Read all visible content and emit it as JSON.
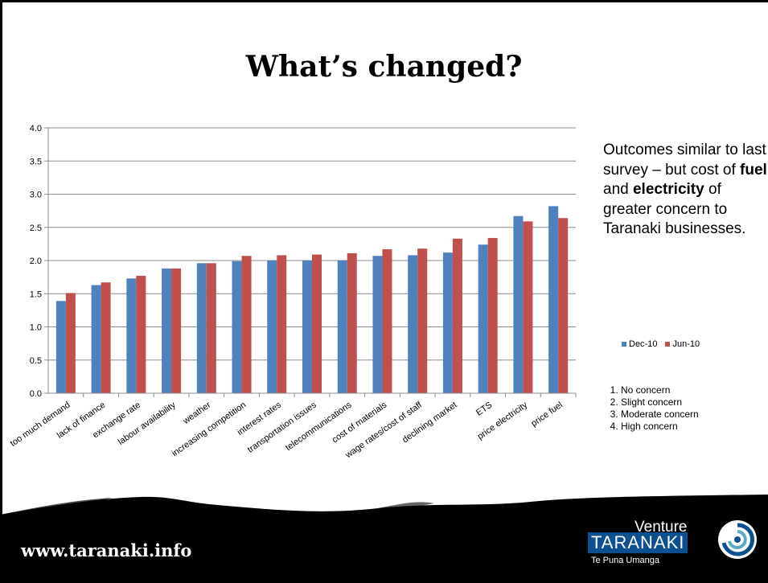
{
  "slide": {
    "title": "What’s changed?",
    "side_text_parts": [
      {
        "text": "Outcomes similar to last survey – but cost of ",
        "bold": false
      },
      {
        "text": "fuel",
        "bold": true
      },
      {
        "text": " and ",
        "bold": false
      },
      {
        "text": "electricity",
        "bold": true
      },
      {
        "text": " of greater concern to Taranaki businesses.",
        "bold": false
      }
    ],
    "scale_items": [
      "No concern",
      "Slight concern",
      "Moderate concern",
      "High concern"
    ],
    "footer_url": "www.taranaki.info",
    "logo": {
      "venture": "Venture",
      "taranaki": "TARANAKI",
      "subtitle": "Te Puna Umanga"
    }
  },
  "chart_data": {
    "type": "bar",
    "categories": [
      "too much demand",
      "lack of finance",
      "exchange rate",
      "labour availability",
      "weather",
      "increasing competition",
      "interest rates",
      "transportation issues",
      "telecommunications",
      "cost of materials",
      "wage rates/cost of staff",
      "declining market",
      "ETS",
      "price electricity",
      "price fuel"
    ],
    "series": [
      {
        "name": "Dec-10",
        "color": "#4f81bd",
        "values": [
          1.39,
          1.63,
          1.73,
          1.88,
          1.96,
          1.99,
          2.0,
          2.0,
          2.0,
          2.07,
          2.08,
          2.12,
          2.24,
          2.67,
          2.82
        ]
      },
      {
        "name": "Jun-10",
        "color": "#c0504d",
        "values": [
          1.51,
          1.67,
          1.77,
          1.88,
          1.96,
          2.07,
          2.08,
          2.09,
          2.11,
          2.17,
          2.18,
          2.33,
          2.34,
          2.59,
          2.64
        ]
      }
    ],
    "ylim": [
      0,
      4
    ],
    "yticks": [
      "0.0",
      "0.5",
      "1.0",
      "1.5",
      "2.0",
      "2.5",
      "3.0",
      "3.5",
      "4.0"
    ],
    "grid": true,
    "legend_position": "right"
  }
}
